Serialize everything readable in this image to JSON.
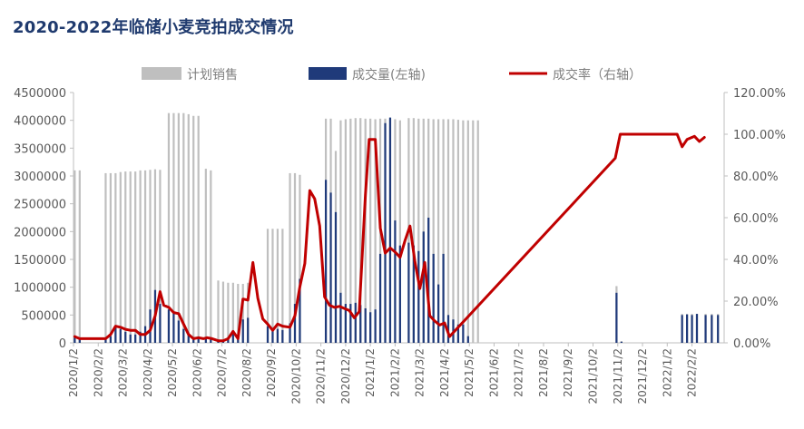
{
  "title": "2020-2022年临储小麦竞拍成交情况",
  "colors": {
    "planned": "#BFBFBF",
    "volume": "#1F3A7A",
    "rate": "#C00000",
    "title": "#1F3A6E",
    "axis": "#BFBFBF",
    "text": "#595959"
  },
  "chart_data": {
    "type": "bar+line",
    "title": "2020-2022年临储小麦竞拍成交情况",
    "legend": {
      "position": "top",
      "entries": [
        "计划销售",
        "成交量(左轴)",
        "成交率（右轴）"
      ]
    },
    "grid": false,
    "y_left": {
      "min": 0,
      "max": 4500000,
      "ticks": [
        "0",
        "500000",
        "1000000",
        "1500000",
        "2000000",
        "2500000",
        "3000000",
        "3500000",
        "4000000",
        "4500000"
      ]
    },
    "y_right": {
      "min": 0,
      "max": 1.2,
      "ticks": [
        "0.00%",
        "20.00%",
        "40.00%",
        "60.00%",
        "80.00%",
        "100.00%",
        "120.00%"
      ]
    },
    "x_range": {
      "start": 0,
      "end": 26.3
    },
    "x_ticks": [
      "2020/1/2",
      "2020/2/2",
      "2020/3/2",
      "2020/4/2",
      "2020/5/2",
      "2020/6/2",
      "2020/7/2",
      "2020/8/2",
      "2020/9/2",
      "2020/10/2",
      "2020/11/2",
      "2020/12/2",
      "2021/1/2",
      "2021/2/2",
      "2021/3/2",
      "2021/4/2",
      "2021/5/2",
      "2021/6/2",
      "2021/7/2",
      "2021/8/2",
      "2021/9/2",
      "2021/10/2",
      "2021/11/2",
      "2021/12/2",
      "2022/1/2",
      "2022/2/2"
    ],
    "series": [
      {
        "name": "计划销售",
        "kind": "bar",
        "points": [
          [
            0.05,
            3100000
          ],
          [
            0.25,
            3100000
          ],
          [
            1.3,
            3050000
          ],
          [
            1.5,
            3050000
          ],
          [
            1.7,
            3050000
          ],
          [
            1.9,
            3070000
          ],
          [
            2.1,
            3080000
          ],
          [
            2.3,
            3080000
          ],
          [
            2.5,
            3080000
          ],
          [
            2.7,
            3100000
          ],
          [
            2.9,
            3100000
          ],
          [
            3.1,
            3110000
          ],
          [
            3.3,
            3120000
          ],
          [
            3.5,
            3110000
          ],
          [
            3.85,
            4130000
          ],
          [
            4.05,
            4130000
          ],
          [
            4.25,
            4130000
          ],
          [
            4.45,
            4130000
          ],
          [
            4.65,
            4110000
          ],
          [
            4.85,
            4080000
          ],
          [
            5.05,
            4080000
          ],
          [
            5.35,
            3130000
          ],
          [
            5.55,
            3100000
          ],
          [
            5.85,
            1120000
          ],
          [
            6.05,
            1100000
          ],
          [
            6.25,
            1080000
          ],
          [
            6.45,
            1080000
          ],
          [
            6.65,
            1060000
          ],
          [
            6.85,
            1060000
          ],
          [
            7.05,
            1080000
          ],
          [
            7.85,
            2050000
          ],
          [
            8.05,
            2050000
          ],
          [
            8.25,
            2050000
          ],
          [
            8.45,
            2050000
          ],
          [
            8.75,
            3050000
          ],
          [
            8.95,
            3050000
          ],
          [
            9.15,
            3020000
          ],
          [
            10.2,
            4030000
          ],
          [
            10.4,
            4030000
          ],
          [
            10.6,
            3450000
          ],
          [
            10.8,
            4000000
          ],
          [
            11.0,
            4020000
          ],
          [
            11.2,
            4030000
          ],
          [
            11.4,
            4040000
          ],
          [
            11.6,
            4040000
          ],
          [
            11.8,
            4030000
          ],
          [
            12.0,
            4030000
          ],
          [
            12.2,
            4020000
          ],
          [
            12.4,
            4030000
          ],
          [
            12.6,
            4030000
          ],
          [
            12.8,
            4030000
          ],
          [
            13.0,
            4020000
          ],
          [
            13.2,
            4000000
          ],
          [
            13.55,
            4040000
          ],
          [
            13.75,
            4040000
          ],
          [
            13.95,
            4030000
          ],
          [
            14.15,
            4030000
          ],
          [
            14.35,
            4030000
          ],
          [
            14.55,
            4020000
          ],
          [
            14.75,
            4020000
          ],
          [
            14.95,
            4020000
          ],
          [
            15.15,
            4020000
          ],
          [
            15.35,
            4020000
          ],
          [
            15.55,
            4010000
          ],
          [
            15.75,
            4000000
          ],
          [
            15.95,
            4000000
          ],
          [
            16.15,
            4000000
          ],
          [
            16.35,
            4000000
          ],
          [
            21.95,
            1020000
          ],
          [
            22.15,
            30000
          ],
          [
            24.6,
            520000
          ],
          [
            24.8,
            520000
          ],
          [
            25.0,
            520000
          ],
          [
            25.2,
            520000
          ],
          [
            25.55,
            520000
          ],
          [
            25.8,
            520000
          ],
          [
            26.05,
            520000
          ]
        ]
      },
      {
        "name": "成交量(左轴)",
        "kind": "bar",
        "points": [
          [
            0.05,
            90000
          ],
          [
            0.25,
            60000
          ],
          [
            1.3,
            80000
          ],
          [
            1.5,
            120000
          ],
          [
            1.7,
            300000
          ],
          [
            1.9,
            250000
          ],
          [
            2.1,
            200000
          ],
          [
            2.3,
            150000
          ],
          [
            2.5,
            150000
          ],
          [
            2.7,
            200000
          ],
          [
            2.9,
            300000
          ],
          [
            3.1,
            600000
          ],
          [
            3.3,
            950000
          ],
          [
            3.5,
            700000
          ],
          [
            3.85,
            600000
          ],
          [
            4.05,
            550000
          ],
          [
            4.25,
            400000
          ],
          [
            4.45,
            250000
          ],
          [
            4.65,
            150000
          ],
          [
            4.85,
            100000
          ],
          [
            5.05,
            80000
          ],
          [
            5.35,
            100000
          ],
          [
            5.55,
            60000
          ],
          [
            5.85,
            50000
          ],
          [
            6.05,
            50000
          ],
          [
            6.25,
            70000
          ],
          [
            6.45,
            170000
          ],
          [
            6.65,
            100000
          ],
          [
            6.85,
            420000
          ],
          [
            7.05,
            450000
          ],
          [
            7.85,
            300000
          ],
          [
            8.05,
            250000
          ],
          [
            8.25,
            250000
          ],
          [
            8.45,
            230000
          ],
          [
            8.75,
            350000
          ],
          [
            8.95,
            700000
          ],
          [
            9.15,
            1150000
          ],
          [
            10.2,
            2930000
          ],
          [
            10.4,
            2700000
          ],
          [
            10.6,
            2350000
          ],
          [
            10.8,
            900000
          ],
          [
            11.0,
            700000
          ],
          [
            11.2,
            700000
          ],
          [
            11.4,
            720000
          ],
          [
            11.6,
            680000
          ],
          [
            11.8,
            620000
          ],
          [
            12.0,
            550000
          ],
          [
            12.2,
            600000
          ],
          [
            12.4,
            1600000
          ],
          [
            12.6,
            3950000
          ],
          [
            12.8,
            4050000
          ],
          [
            13.0,
            2200000
          ],
          [
            13.2,
            1750000
          ],
          [
            13.55,
            1800000
          ],
          [
            13.75,
            1750000
          ],
          [
            13.95,
            1650000
          ],
          [
            14.15,
            2000000
          ],
          [
            14.35,
            2250000
          ],
          [
            14.55,
            1600000
          ],
          [
            14.75,
            1050000
          ],
          [
            14.95,
            1600000
          ],
          [
            15.15,
            500000
          ],
          [
            15.35,
            420000
          ],
          [
            15.55,
            330000
          ],
          [
            15.75,
            330000
          ],
          [
            15.95,
            120000
          ],
          [
            16.15,
            0
          ],
          [
            16.35,
            0
          ],
          [
            21.95,
            900000
          ],
          [
            22.15,
            20000
          ],
          [
            24.6,
            500000
          ],
          [
            24.8,
            510000
          ],
          [
            25.0,
            500000
          ],
          [
            25.2,
            520000
          ],
          [
            25.55,
            500000
          ],
          [
            25.8,
            500000
          ],
          [
            26.05,
            500000
          ]
        ]
      },
      {
        "name": "成交率（右轴）",
        "kind": "line",
        "axis": "right",
        "points": [
          [
            0.05,
            0.03
          ],
          [
            0.25,
            0.02
          ],
          [
            0.6,
            0.02
          ],
          [
            1.3,
            0.02
          ],
          [
            1.5,
            0.04
          ],
          [
            1.7,
            0.08
          ],
          [
            1.9,
            0.075
          ],
          [
            2.1,
            0.065
          ],
          [
            2.3,
            0.06
          ],
          [
            2.5,
            0.06
          ],
          [
            2.7,
            0.04
          ],
          [
            2.9,
            0.04
          ],
          [
            3.1,
            0.06
          ],
          [
            3.3,
            0.13
          ],
          [
            3.5,
            0.245
          ],
          [
            3.65,
            0.18
          ],
          [
            3.85,
            0.17
          ],
          [
            4.05,
            0.145
          ],
          [
            4.25,
            0.14
          ],
          [
            4.45,
            0.09
          ],
          [
            4.65,
            0.04
          ],
          [
            4.85,
            0.02
          ],
          [
            5.05,
            0.025
          ],
          [
            5.25,
            0.02
          ],
          [
            5.4,
            0.025
          ],
          [
            5.6,
            0.02
          ],
          [
            5.85,
            0.01
          ],
          [
            6.05,
            0.01
          ],
          [
            6.25,
            0.02
          ],
          [
            6.45,
            0.055
          ],
          [
            6.65,
            0.02
          ],
          [
            6.85,
            0.21
          ],
          [
            7.05,
            0.205
          ],
          [
            7.25,
            0.385
          ],
          [
            7.45,
            0.215
          ],
          [
            7.65,
            0.115
          ],
          [
            7.85,
            0.09
          ],
          [
            8.05,
            0.06
          ],
          [
            8.25,
            0.09
          ],
          [
            8.45,
            0.08
          ],
          [
            8.75,
            0.075
          ],
          [
            8.95,
            0.13
          ],
          [
            9.15,
            0.27
          ],
          [
            9.35,
            0.38
          ],
          [
            9.55,
            0.73
          ],
          [
            9.75,
            0.69
          ],
          [
            9.95,
            0.56
          ],
          [
            10.15,
            0.22
          ],
          [
            10.35,
            0.18
          ],
          [
            10.55,
            0.17
          ],
          [
            10.75,
            0.175
          ],
          [
            10.95,
            0.165
          ],
          [
            11.15,
            0.155
          ],
          [
            11.35,
            0.12
          ],
          [
            11.55,
            0.15
          ],
          [
            11.8,
            0.71
          ],
          [
            11.95,
            0.975
          ],
          [
            12.2,
            0.975
          ],
          [
            12.4,
            0.55
          ],
          [
            12.6,
            0.43
          ],
          [
            12.8,
            0.455
          ],
          [
            13.0,
            0.435
          ],
          [
            13.2,
            0.41
          ],
          [
            13.4,
            0.49
          ],
          [
            13.6,
            0.56
          ],
          [
            13.8,
            0.39
          ],
          [
            14.0,
            0.26
          ],
          [
            14.2,
            0.385
          ],
          [
            14.4,
            0.13
          ],
          [
            14.6,
            0.105
          ],
          [
            14.8,
            0.085
          ],
          [
            15.0,
            0.095
          ],
          [
            15.2,
            0.03
          ],
          [
            21.9,
            0.885
          ],
          [
            22.1,
            1.0
          ],
          [
            24.4,
            1.0
          ],
          [
            24.6,
            0.94
          ],
          [
            24.8,
            0.975
          ],
          [
            25.1,
            0.99
          ],
          [
            25.3,
            0.965
          ],
          [
            25.5,
            0.985
          ]
        ]
      }
    ]
  }
}
